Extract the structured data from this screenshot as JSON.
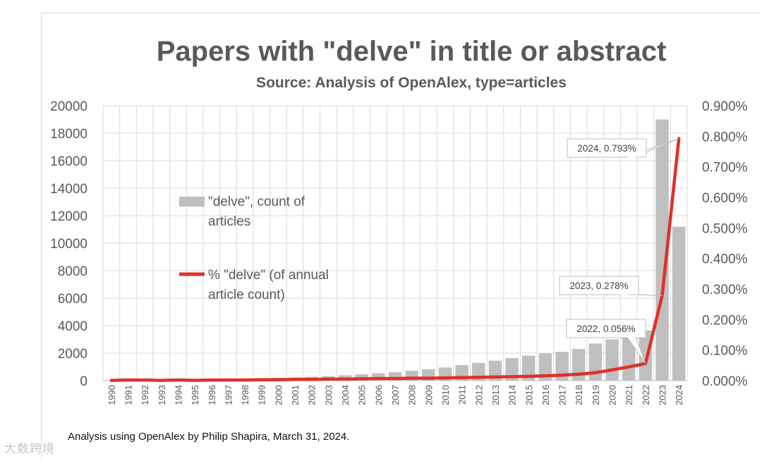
{
  "chart_data": {
    "type": "bar",
    "title": "Papers with \"delve\" in title or abstract",
    "subtitle": "Source: Analysis of OpenAlex, type=articles",
    "categories": [
      "1990",
      "1991",
      "1992",
      "1993",
      "1994",
      "1995",
      "1996",
      "1997",
      "1998",
      "1999",
      "2000",
      "2001",
      "2002",
      "2003",
      "2004",
      "2005",
      "2006",
      "2007",
      "2008",
      "2009",
      "2010",
      "2011",
      "2012",
      "2013",
      "2014",
      "2015",
      "2016",
      "2017",
      "2018",
      "2019",
      "2020",
      "2021",
      "2022",
      "2023",
      "2024"
    ],
    "series": [
      {
        "name": "\"delve\", count of articles",
        "kind": "bar",
        "axis": "left",
        "color": "#bfbfbf",
        "values": [
          40,
          60,
          70,
          80,
          100,
          110,
          130,
          150,
          170,
          190,
          210,
          240,
          280,
          330,
          390,
          460,
          540,
          620,
          720,
          830,
          960,
          1130,
          1290,
          1450,
          1640,
          1820,
          1980,
          2100,
          2300,
          2700,
          3000,
          3300,
          3650,
          19000,
          11200
        ]
      },
      {
        "name": "% \"delve\" (of annual article count)",
        "kind": "line",
        "axis": "right",
        "color": "#e0302a",
        "values": [
          0.001,
          0.002,
          0.002,
          0.001,
          0.002,
          0.001,
          0.002,
          0.002,
          0.002,
          0.003,
          0.003,
          0.004,
          0.004,
          0.005,
          0.005,
          0.006,
          0.007,
          0.007,
          0.008,
          0.008,
          0.009,
          0.01,
          0.011,
          0.012,
          0.013,
          0.014,
          0.016,
          0.018,
          0.021,
          0.026,
          0.035,
          0.045,
          0.056,
          0.278,
          0.793
        ]
      }
    ],
    "y_left": {
      "min": 0,
      "max": 20000,
      "ticks": [
        "0",
        "2000",
        "4000",
        "6000",
        "8000",
        "10000",
        "12000",
        "14000",
        "16000",
        "18000",
        "20000"
      ]
    },
    "y_right": {
      "min": 0,
      "max": 0.9,
      "ticks": [
        "0.000%",
        "0.100%",
        "0.200%",
        "0.300%",
        "0.400%",
        "0.500%",
        "0.600%",
        "0.700%",
        "0.800%",
        "0.900%"
      ]
    },
    "grid": true,
    "legend": {
      "placement": "left-inside",
      "bar_label_line1": "\"delve\", count of",
      "bar_label_line2": "articles",
      "line_label_line1": "% \"delve\" (of annual",
      "line_label_line2": "article count)"
    },
    "annotations": [
      {
        "index": 34,
        "text": "2024, 0.793%"
      },
      {
        "index": 33,
        "text": "2023, 0.278%"
      },
      {
        "index": 32,
        "text": "2022, 0.056%"
      }
    ]
  },
  "footer": "Analysis using OpenAlex by Philip Shapira, March 31, 2024.",
  "watermark": "大数跨境"
}
